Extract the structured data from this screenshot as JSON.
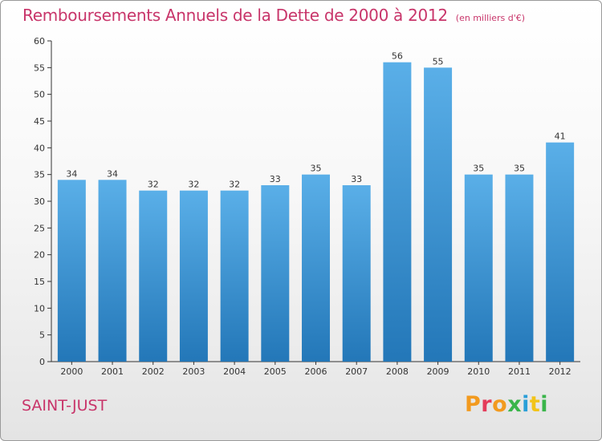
{
  "header": {
    "title": "Remboursements Annuels de la Dette de 2000 à 2012",
    "unit": "(en milliers d'€)"
  },
  "footer": {
    "place": "SAINT-JUST",
    "logo": {
      "letters": [
        "P",
        "r",
        "o",
        "x",
        "i",
        "t",
        "i"
      ],
      "colors": [
        "#f29a1f",
        "#e43c5a",
        "#f29a1f",
        "#3ab54a",
        "#2a9fd8",
        "#f2c419",
        "#3ab54a"
      ]
    }
  },
  "chart_data": {
    "type": "bar",
    "title": "Remboursements Annuels de la Dette de 2000 à 2012",
    "categories": [
      "2000",
      "2001",
      "2002",
      "2003",
      "2004",
      "2005",
      "2006",
      "2007",
      "2008",
      "2009",
      "2010",
      "2011",
      "2012"
    ],
    "values": [
      34,
      34,
      32,
      32,
      32,
      33,
      35,
      33,
      56,
      55,
      35,
      35,
      41
    ],
    "xlabel": "",
    "ylabel": "",
    "ylim": [
      0,
      60
    ],
    "yticks": [
      0,
      5,
      10,
      15,
      20,
      25,
      30,
      35,
      40,
      45,
      50,
      55,
      60
    ],
    "grid": false,
    "legend": "none",
    "colors": {
      "bar_top": "#5aafe8",
      "bar_bottom": "#2377b8"
    }
  }
}
